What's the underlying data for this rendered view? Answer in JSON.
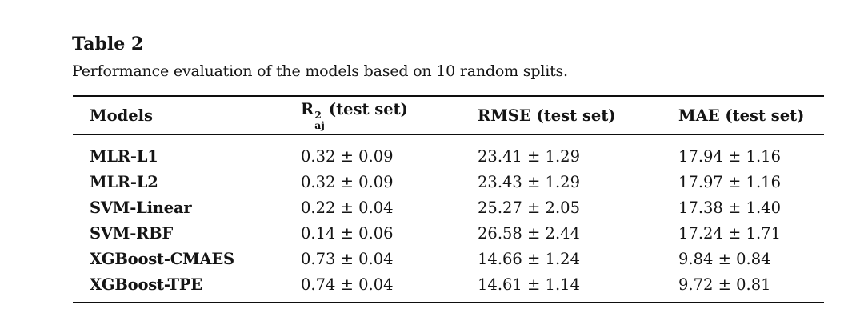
{
  "caption": {
    "label": "Table 2",
    "text": "Performance evaluation of the models based on 10 random splits."
  },
  "table": {
    "columns": [
      {
        "label": "Models"
      },
      {
        "base": "R",
        "sup": "2",
        "sub": "aj",
        "suffix": "(test set)"
      },
      {
        "label": "RMSE (test set)"
      },
      {
        "label": "MAE (test set)"
      }
    ],
    "rows": [
      {
        "model": "MLR-L1",
        "r2": "0.32 ± 0.09",
        "rmse": "23.41 ± 1.29",
        "mae": "17.94 ± 1.16"
      },
      {
        "model": "MLR-L2",
        "r2": "0.32 ± 0.09",
        "rmse": "23.43 ± 1.29",
        "mae": "17.97 ± 1.16"
      },
      {
        "model": "SVM-Linear",
        "r2": "0.22 ± 0.04",
        "rmse": "25.27 ± 2.05",
        "mae": "17.38 ± 1.40"
      },
      {
        "model": "SVM-RBF",
        "r2": "0.14 ± 0.06",
        "rmse": "26.58 ± 2.44",
        "mae": "17.24 ± 1.71"
      },
      {
        "model": "XGBoost-CMAES",
        "r2": "0.73 ± 0.04",
        "rmse": "14.66 ± 1.24",
        "mae": "9.84 ± 0.84"
      },
      {
        "model": "XGBoost-TPE",
        "r2": "0.74 ± 0.04",
        "rmse": "14.61 ± 1.14",
        "mae": "9.72 ± 0.81"
      }
    ]
  },
  "colors": {
    "text": "#141414",
    "rule": "#0e0e0e",
    "background": "#ffffff"
  }
}
